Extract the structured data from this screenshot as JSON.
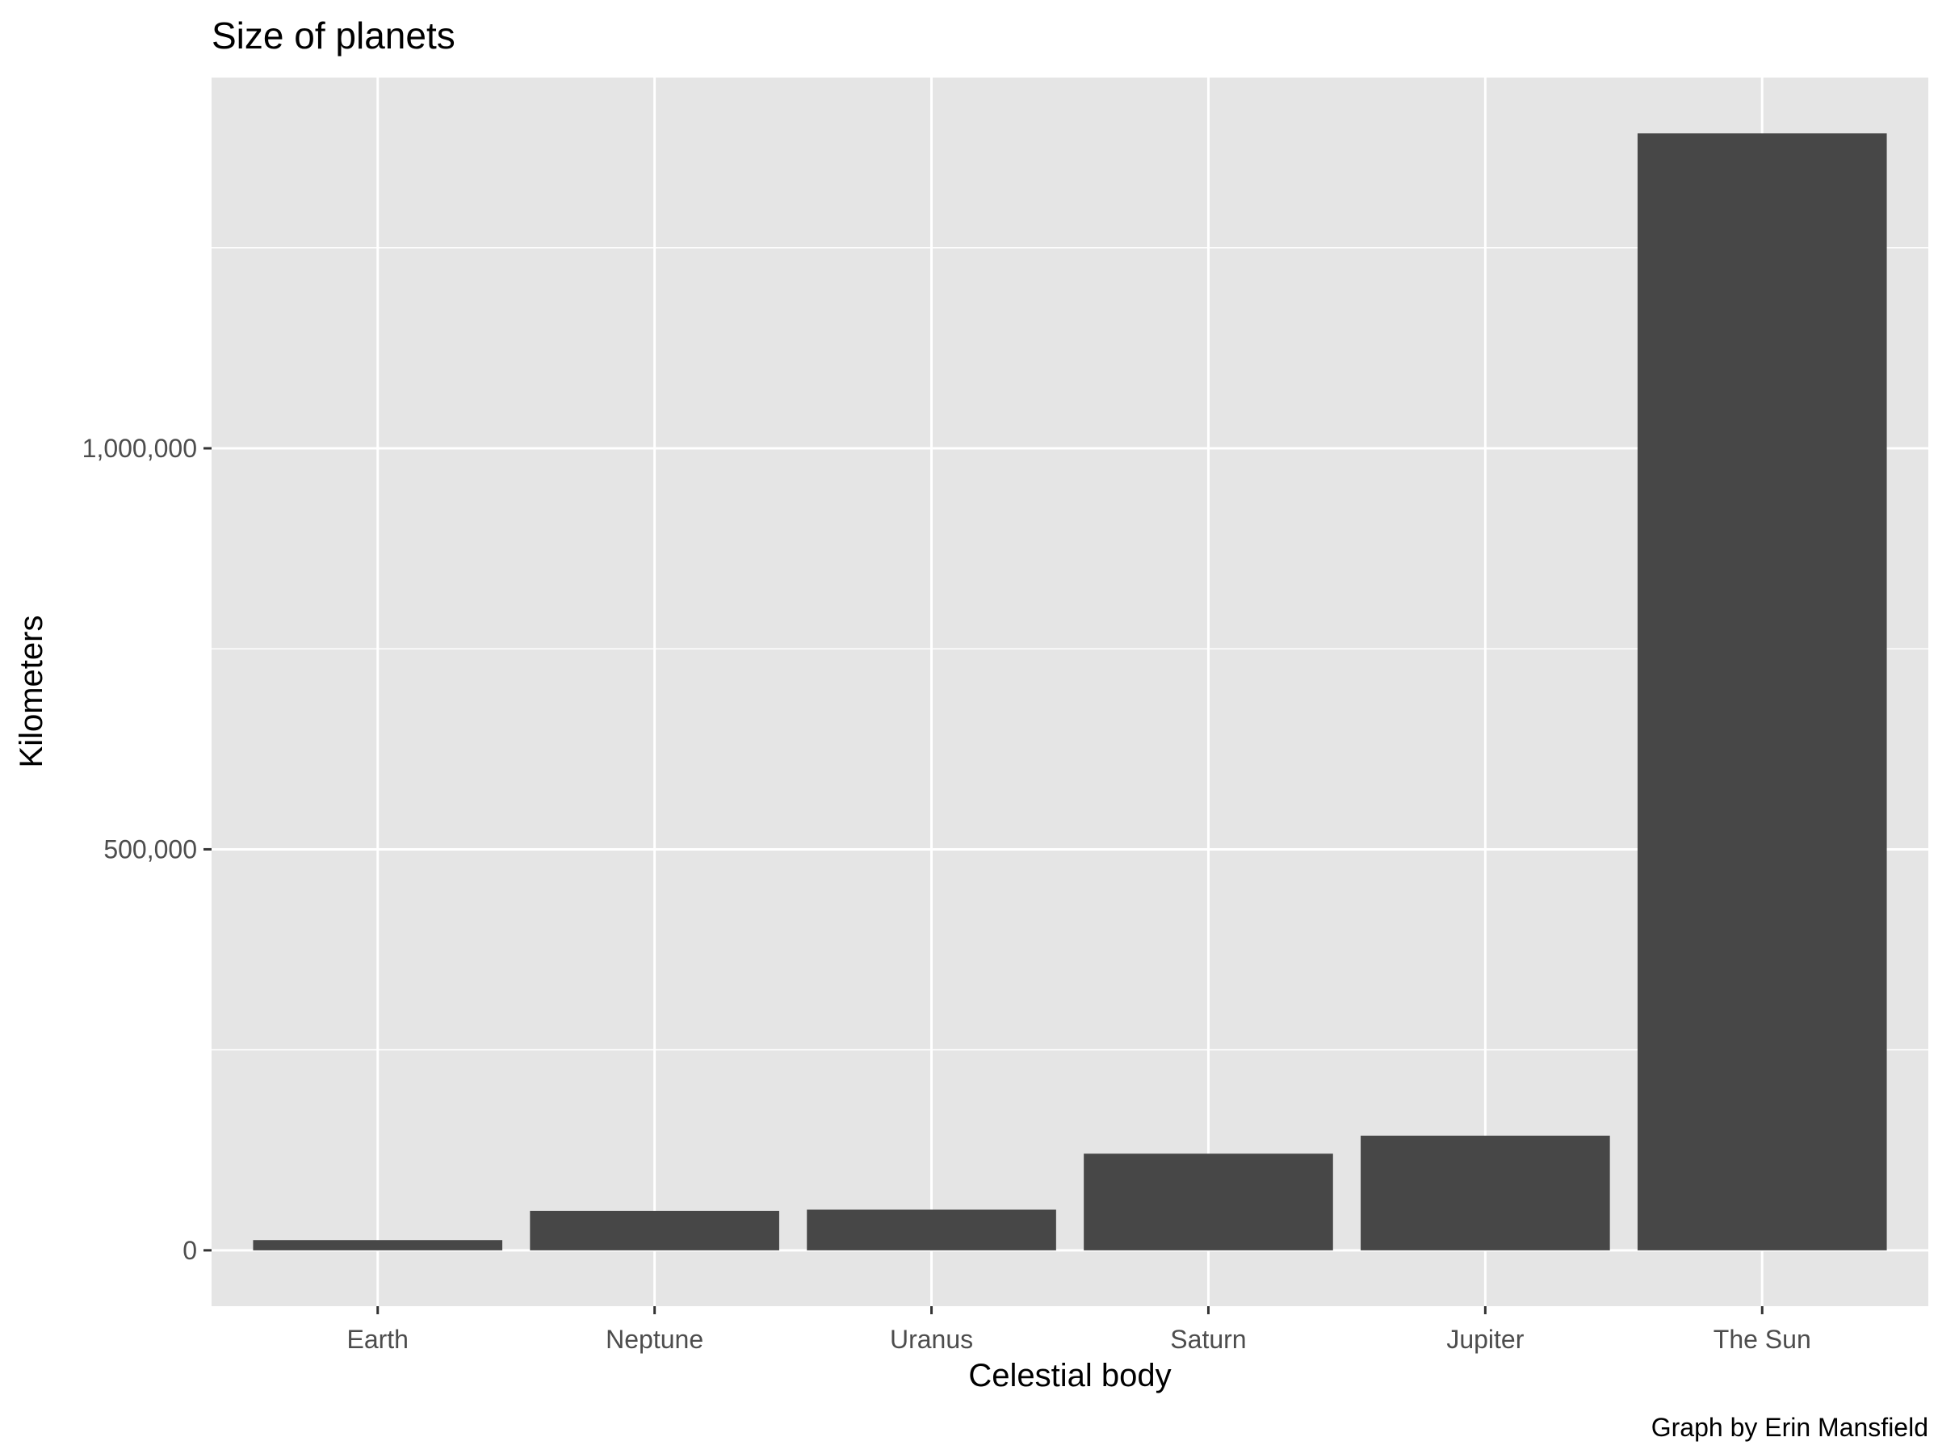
{
  "chart_data": {
    "type": "bar",
    "title": "Size of planets",
    "xlabel": "Celestial body",
    "ylabel": "Kilometers",
    "caption": "Graph by Erin Mansfield",
    "categories": [
      "Earth",
      "Neptune",
      "Uranus",
      "Saturn",
      "Jupiter",
      "The Sun"
    ],
    "values": [
      12742,
      49244,
      50724,
      120536,
      142984,
      1392684
    ],
    "ylim": [
      -69634,
      1462318
    ],
    "y_ticks": [
      0,
      500000,
      1000000
    ],
    "y_tick_labels": [
      "0",
      "500,000",
      "1,000,000"
    ],
    "grid": true,
    "legend": "none",
    "colors": {
      "bar": "#474747",
      "panel": "#e5e5e5",
      "grid": "#ffffff"
    }
  }
}
